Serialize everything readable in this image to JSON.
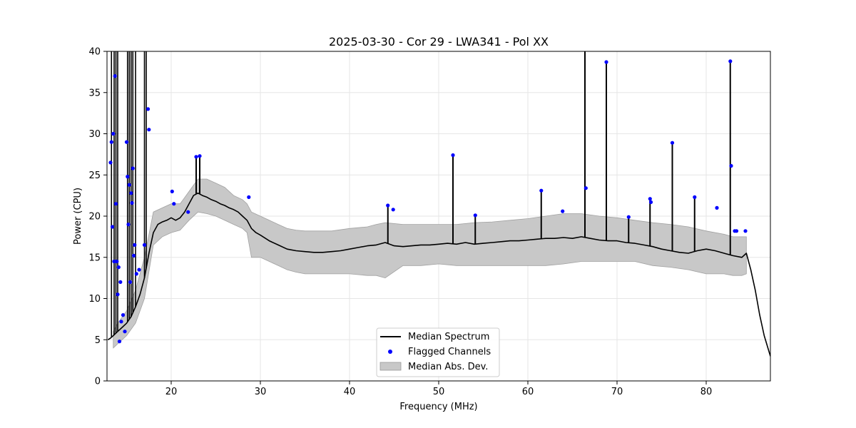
{
  "chart_data": {
    "type": "line",
    "title": "2025-03-30 - Cor 29 - LWA341 - Pol XX",
    "xlabel": "Frequency (MHz)",
    "ylabel": "Power (CPU)",
    "xlim": [
      12.8,
      87.2
    ],
    "ylim": [
      0,
      40
    ],
    "grid": true,
    "legend_position": "bottom-center",
    "xticks": [
      20,
      30,
      40,
      50,
      60,
      70,
      80
    ],
    "xtick_labels": [
      "20",
      "30",
      "40",
      "50",
      "60",
      "70",
      "80"
    ],
    "yticks": [
      0,
      5,
      10,
      15,
      20,
      25,
      30,
      35,
      40
    ],
    "ytick_labels": [
      "0",
      "5",
      "10",
      "15",
      "20",
      "25",
      "30",
      "35",
      "40"
    ],
    "series": [
      {
        "name": "Median Spectrum",
        "color": "#000000",
        "x": [
          12.9,
          13.2,
          13.5,
          14.0,
          14.5,
          15.0,
          15.5,
          16.0,
          16.5,
          17.0,
          17.5,
          18.0,
          18.5,
          19.0,
          19.5,
          20.0,
          20.5,
          21.0,
          21.5,
          22.0,
          22.5,
          23.0,
          23.5,
          24.0,
          24.5,
          25.0,
          25.5,
          26.0,
          26.5,
          27.0,
          27.5,
          28.0,
          28.5,
          29.0,
          29.5,
          30.0,
          31.0,
          32.0,
          33.0,
          34.0,
          35.0,
          36.0,
          37.0,
          38.0,
          39.0,
          40.0,
          41.0,
          42.0,
          43.0,
          44.0,
          45.0,
          46.0,
          47.0,
          48.0,
          49.0,
          50.0,
          51.0,
          52.0,
          53.0,
          54.0,
          55.0,
          56.0,
          57.0,
          58.0,
          59.0,
          60.0,
          61.0,
          62.0,
          63.0,
          64.0,
          65.0,
          66.0,
          67.0,
          68.0,
          69.0,
          70.0,
          71.0,
          72.0,
          73.0,
          74.0,
          75.0,
          76.0,
          77.0,
          78.0,
          79.0,
          80.0,
          81.0,
          82.0,
          83.0,
          84.0,
          84.5,
          85.0,
          85.5,
          86.0,
          86.5,
          87.2
        ],
        "y": [
          5.0,
          5.2,
          5.5,
          6.0,
          6.5,
          7.0,
          7.8,
          9.0,
          10.5,
          12.5,
          15.5,
          18.0,
          19.0,
          19.3,
          19.5,
          19.8,
          19.5,
          19.8,
          20.5,
          21.5,
          22.5,
          22.8,
          22.5,
          22.3,
          22.0,
          21.8,
          21.5,
          21.3,
          21.0,
          20.8,
          20.5,
          20.0,
          19.5,
          18.5,
          18.0,
          17.7,
          17.0,
          16.5,
          16.0,
          15.8,
          15.7,
          15.6,
          15.6,
          15.7,
          15.8,
          16.0,
          16.2,
          16.4,
          16.5,
          16.8,
          16.4,
          16.3,
          16.4,
          16.5,
          16.5,
          16.6,
          16.7,
          16.6,
          16.8,
          16.6,
          16.7,
          16.8,
          16.9,
          17.0,
          17.0,
          17.1,
          17.2,
          17.3,
          17.3,
          17.4,
          17.3,
          17.5,
          17.3,
          17.1,
          17.0,
          17.0,
          16.8,
          16.7,
          16.5,
          16.3,
          16.0,
          15.8,
          15.6,
          15.5,
          15.8,
          16.0,
          15.8,
          15.5,
          15.2,
          15.0,
          15.5,
          13.5,
          11.0,
          8.0,
          5.5,
          3.0
        ]
      },
      {
        "name": "Median Abs. Dev.",
        "color": "#bdbdbd",
        "x": [
          13.5,
          14.0,
          15.0,
          16.0,
          17.0,
          18.0,
          19.0,
          20.0,
          21.0,
          22.0,
          23.0,
          24.0,
          25.0,
          26.0,
          27.0,
          28.0,
          28.5,
          29.0,
          30.0,
          31.0,
          32.0,
          33.0,
          34.0,
          35.0,
          36.0,
          38.0,
          40.0,
          42.0,
          43.0,
          44.0,
          46.0,
          48.0,
          50.0,
          52.0,
          54.0,
          56.0,
          58.0,
          60.0,
          62.0,
          64.0,
          66.0,
          68.0,
          70.0,
          72.0,
          74.0,
          76.0,
          78.0,
          80.0,
          82.0,
          83.0,
          84.0,
          84.5
        ],
        "lower": [
          4.0,
          4.5,
          5.5,
          7.0,
          10.0,
          16.5,
          17.5,
          18.0,
          18.3,
          19.5,
          20.5,
          20.3,
          20.0,
          19.5,
          19.0,
          18.5,
          18.0,
          15.0,
          15.0,
          14.5,
          14.0,
          13.5,
          13.2,
          13.0,
          13.0,
          13.0,
          13.0,
          12.8,
          12.8,
          12.5,
          14.0,
          14.0,
          14.2,
          14.0,
          14.0,
          14.0,
          14.0,
          14.0,
          14.0,
          14.2,
          14.5,
          14.5,
          14.5,
          14.5,
          14.0,
          13.8,
          13.5,
          13.0,
          13.0,
          12.8,
          12.8,
          13.0
        ],
        "upper": [
          6.0,
          7.0,
          8.5,
          11.0,
          15.0,
          20.5,
          21.0,
          21.5,
          21.5,
          23.0,
          24.5,
          24.5,
          24.0,
          23.5,
          22.5,
          22.0,
          21.5,
          20.5,
          20.0,
          19.5,
          19.0,
          18.5,
          18.3,
          18.2,
          18.2,
          18.2,
          18.5,
          18.7,
          19.0,
          19.2,
          19.0,
          19.0,
          19.0,
          19.0,
          19.2,
          19.3,
          19.5,
          19.7,
          20.0,
          20.3,
          20.3,
          20.0,
          19.8,
          19.5,
          19.2,
          19.0,
          18.7,
          18.2,
          17.8,
          17.5,
          17.5,
          17.5
        ]
      },
      {
        "name": "Flagged Channels",
        "color": "#0000ff",
        "x": [
          13.2,
          13.3,
          13.4,
          13.5,
          13.6,
          13.7,
          13.8,
          13.9,
          14.0,
          14.1,
          14.2,
          14.3,
          14.4,
          14.6,
          14.8,
          15.0,
          15.1,
          15.2,
          15.3,
          15.4,
          15.5,
          15.6,
          15.7,
          15.8,
          15.9,
          16.1,
          16.4,
          17.0,
          17.4,
          17.5,
          20.1,
          20.3,
          21.9,
          22.8,
          23.2,
          28.7,
          44.3,
          44.9,
          51.6,
          54.1,
          61.5,
          63.9,
          66.5,
          68.8,
          71.3,
          73.7,
          73.8,
          76.2,
          78.7,
          81.2,
          82.7,
          82.8,
          83.2,
          83.4,
          84.4
        ],
        "y": [
          26.5,
          29.0,
          18.7,
          30.0,
          14.5,
          37.0,
          21.5,
          14.5,
          10.5,
          13.8,
          4.8,
          12.0,
          7.2,
          8.0,
          6.0,
          29.0,
          24.8,
          19.0,
          23.8,
          12.0,
          22.8,
          21.6,
          25.8,
          15.2,
          16.5,
          13.0,
          13.5,
          16.5,
          33.0,
          30.5,
          23.0,
          21.5,
          20.5,
          27.2,
          27.3,
          22.3,
          21.3,
          20.8,
          27.4,
          20.1,
          23.1,
          20.6,
          23.4,
          38.7,
          19.9,
          22.1,
          21.7,
          28.9,
          22.3,
          21.0,
          38.8,
          26.1,
          18.2,
          18.2,
          18.2
        ]
      }
    ],
    "spikes": [
      {
        "x": 51.6,
        "y": 27.4
      },
      {
        "x": 66.4,
        "y": 40.0
      },
      {
        "x": 68.8,
        "y": 38.7
      },
      {
        "x": 76.2,
        "y": 28.9
      },
      {
        "x": 82.7,
        "y": 38.8
      },
      {
        "x": 78.7,
        "y": 22.3
      },
      {
        "x": 61.5,
        "y": 23.1
      },
      {
        "x": 44.3,
        "y": 21.3
      },
      {
        "x": 73.7,
        "y": 22.1
      },
      {
        "x": 54.1,
        "y": 20.1
      },
      {
        "x": 71.3,
        "y": 19.9
      },
      {
        "x": 22.8,
        "y": 27.2
      },
      {
        "x": 23.2,
        "y": 27.3
      }
    ]
  }
}
